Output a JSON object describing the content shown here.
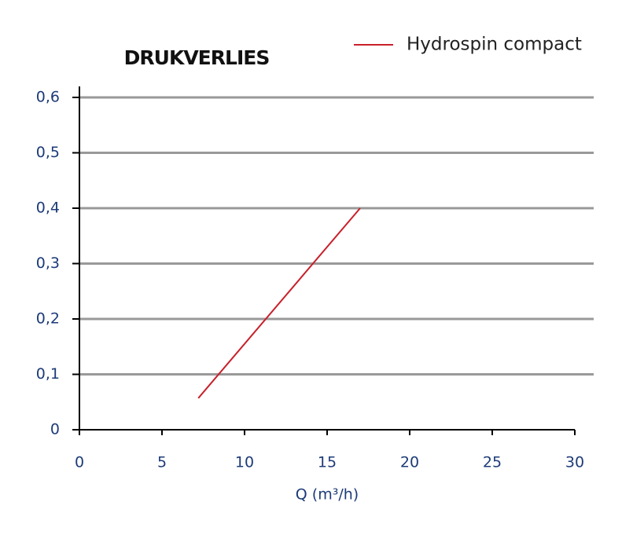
{
  "chart_data": {
    "type": "line",
    "title": "DRUKVERLIES",
    "x_label": "Q (m³/h)",
    "x": [
      7.2,
      17
    ],
    "series": [
      {
        "name": "Hydrospin compact",
        "color": "#c8202a",
        "values": [
          0.057,
          0.4
        ]
      }
    ],
    "xlim": [
      0,
      30
    ],
    "xticks": [
      0,
      5,
      10,
      15,
      20,
      25,
      30
    ],
    "ylim": [
      0,
      0.6
    ],
    "yticks": [
      0,
      {
        "value": 0.1,
        "label": "0,1"
      },
      {
        "value": 0.2,
        "label": "0,2"
      },
      {
        "value": 0.3,
        "label": "0,3"
      },
      {
        "value": 0.4,
        "label": "0,4"
      },
      {
        "value": 0.5,
        "label": "0,5"
      },
      {
        "value": 0.6,
        "label": "0,6"
      }
    ],
    "grid": true,
    "legend": "top-right"
  }
}
